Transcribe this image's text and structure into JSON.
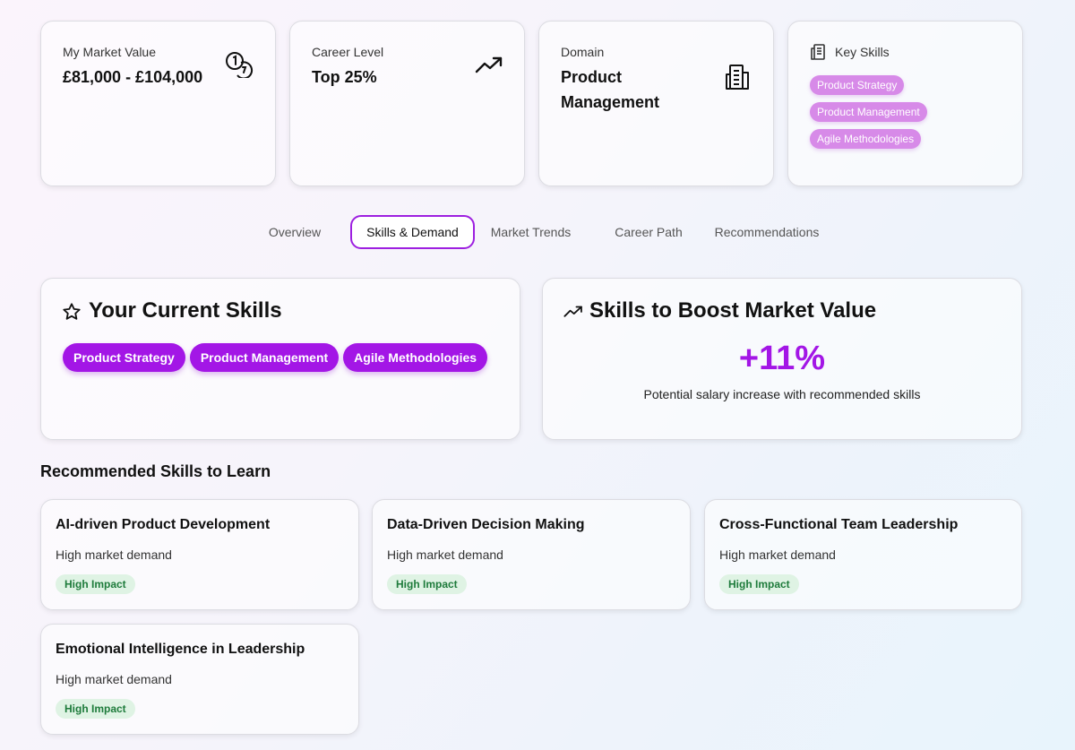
{
  "stats": {
    "market_value": {
      "label": "My Market Value",
      "value": "£81,000 - £104,000",
      "icon": "coins-icon"
    },
    "career_level": {
      "label": "Career Level",
      "value": "Top 25%",
      "icon": "trending-up-icon"
    },
    "domain": {
      "label": "Domain",
      "value_line1": "Product",
      "value_line2": "Management",
      "icon": "building-icon"
    },
    "key_skills": {
      "label": "Key Skills",
      "icon": "document-icon",
      "chips": [
        "Product Strategy",
        "Product Management",
        "Agile Methodologies"
      ]
    }
  },
  "tabs": [
    {
      "label": "Overview",
      "active": false
    },
    {
      "label": "Skills & Demand",
      "active": true
    },
    {
      "label": "Market Trends",
      "active": false
    },
    {
      "label": "Career Path",
      "active": false
    },
    {
      "label": "Recommendations",
      "active": false
    }
  ],
  "current_skills": {
    "title": "Your Current Skills",
    "icon": "star-icon",
    "chips": [
      "Product Strategy",
      "Product Management",
      "Agile Methodologies"
    ]
  },
  "boost": {
    "title": "Skills to Boost Market Value",
    "icon": "trending-up-icon",
    "percent": "+11%",
    "description": "Potential salary increase with recommended skills"
  },
  "recommended": {
    "title": "Recommended Skills to Learn",
    "items": [
      {
        "title": "AI-driven Product Development",
        "desc": "High market demand",
        "badge": "High Impact"
      },
      {
        "title": "Data-Driven Decision Making",
        "desc": "High market demand",
        "badge": "High Impact"
      },
      {
        "title": "Cross-Functional Team Leadership",
        "desc": "High market demand",
        "badge": "High Impact"
      },
      {
        "title": "Emotional Intelligence in Leadership",
        "desc": "High market demand",
        "badge": "High Impact"
      }
    ]
  },
  "colors": {
    "accent": "#a316e6",
    "accent_light": "#d78ae8",
    "badge_bg": "#dff3e4",
    "badge_text": "#1e7b3b"
  }
}
